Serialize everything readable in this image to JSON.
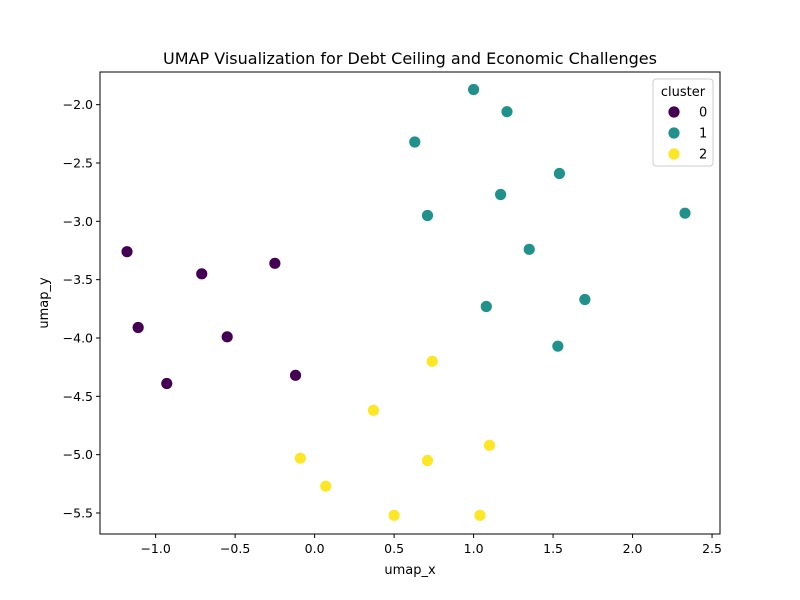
{
  "chart_data": {
    "type": "scatter",
    "title": "UMAP Visualization for Debt Ceiling and Economic Challenges",
    "xlabel": "umap_x",
    "ylabel": "umap_y",
    "xlim": [
      -1.35,
      2.55
    ],
    "ylim": [
      -5.68,
      -1.72
    ],
    "xticks": [
      -1.0,
      -0.5,
      0.0,
      0.5,
      1.0,
      1.5,
      2.0,
      2.5
    ],
    "xtick_labels": [
      "−1.0",
      "−0.5",
      "0.0",
      "0.5",
      "1.0",
      "1.5",
      "2.0",
      "2.5"
    ],
    "yticks": [
      -2.0,
      -2.5,
      -3.0,
      -3.5,
      -4.0,
      -4.5,
      -5.0,
      -5.5
    ],
    "ytick_labels": [
      "−2.0",
      "−2.5",
      "−3.0",
      "−3.5",
      "−4.0",
      "−4.5",
      "−5.0",
      "−5.5"
    ],
    "grid": false,
    "legend": {
      "title": "cluster",
      "placement": "top-right"
    },
    "series": [
      {
        "name": "0",
        "color": "#440154",
        "points": [
          {
            "x": -1.18,
            "y": -3.26
          },
          {
            "x": -0.71,
            "y": -3.45
          },
          {
            "x": -0.25,
            "y": -3.36
          },
          {
            "x": -1.11,
            "y": -3.91
          },
          {
            "x": -0.55,
            "y": -3.99
          },
          {
            "x": -0.93,
            "y": -4.39
          },
          {
            "x": -0.12,
            "y": -4.32
          }
        ]
      },
      {
        "name": "1",
        "color": "#21918c",
        "points": [
          {
            "x": 1.0,
            "y": -1.87
          },
          {
            "x": 1.21,
            "y": -2.06
          },
          {
            "x": 0.63,
            "y": -2.32
          },
          {
            "x": 1.54,
            "y": -2.59
          },
          {
            "x": 1.17,
            "y": -2.77
          },
          {
            "x": 0.71,
            "y": -2.95
          },
          {
            "x": 2.33,
            "y": -2.93
          },
          {
            "x": 1.35,
            "y": -3.24
          },
          {
            "x": 1.08,
            "y": -3.73
          },
          {
            "x": 1.7,
            "y": -3.67
          },
          {
            "x": 1.53,
            "y": -4.07
          }
        ]
      },
      {
        "name": "2",
        "color": "#fde725",
        "points": [
          {
            "x": 0.74,
            "y": -4.2
          },
          {
            "x": 0.37,
            "y": -4.62
          },
          {
            "x": 1.1,
            "y": -4.92
          },
          {
            "x": -0.09,
            "y": -5.03
          },
          {
            "x": 0.71,
            "y": -5.05
          },
          {
            "x": 0.07,
            "y": -5.27
          },
          {
            "x": 0.5,
            "y": -5.52
          },
          {
            "x": 1.04,
            "y": -5.52
          }
        ]
      }
    ]
  }
}
